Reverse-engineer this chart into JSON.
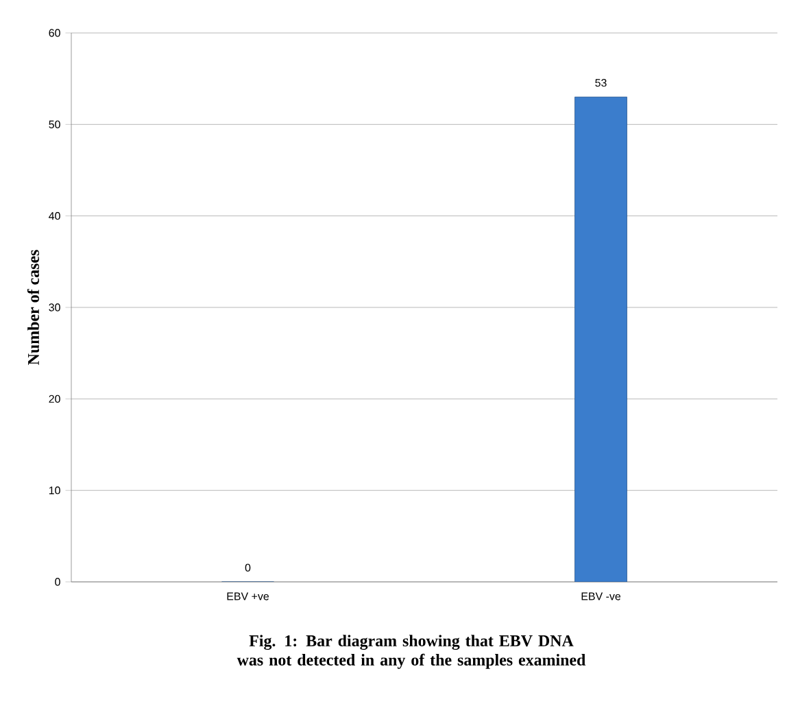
{
  "chart_data": {
    "type": "bar",
    "ylabel": "Number of cases",
    "categories": [
      "EBV +ve",
      "EBV -ve"
    ],
    "values": [
      0,
      53
    ],
    "color": "#3b7dcc",
    "ylim": [
      0,
      60
    ],
    "yticks": [
      0,
      10,
      20,
      30,
      40,
      50,
      60
    ],
    "grid": "y",
    "data_labels": true,
    "annotations": [
      "Fig. 1: Bar diagram showing that EBV DNA was not detected in any of the samples examined"
    ]
  }
}
